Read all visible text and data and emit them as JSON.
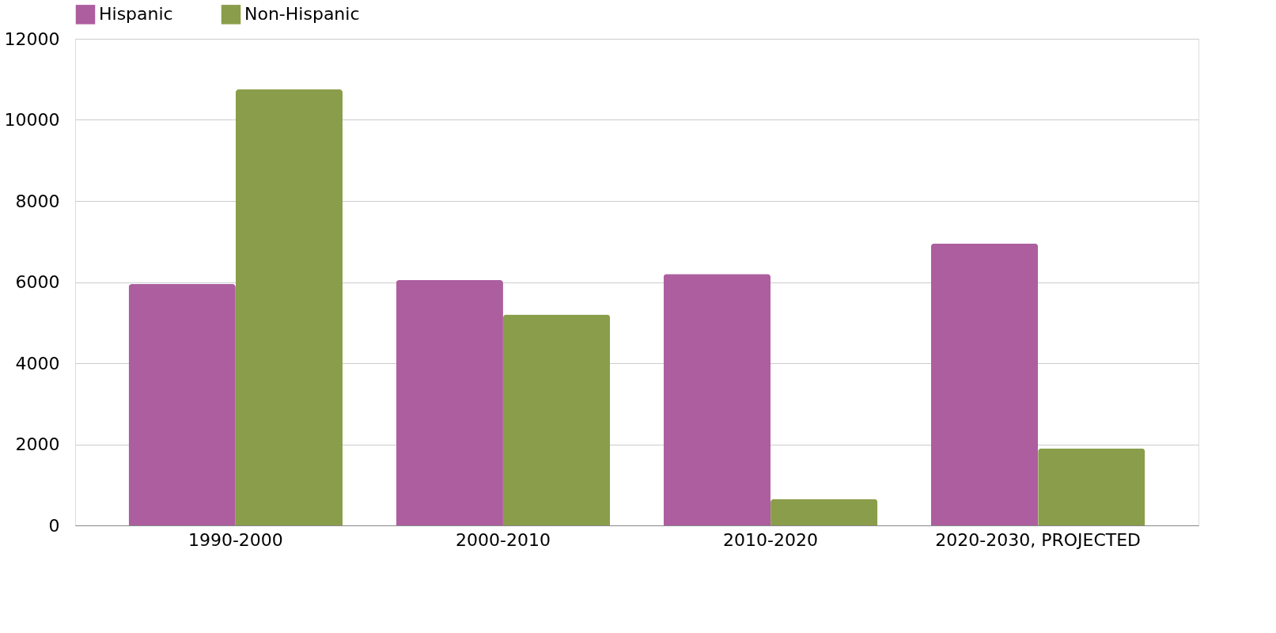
{
  "chart_data": {
    "type": "bar",
    "categories": [
      "1990-2000",
      "2000-2010",
      "2010-2020",
      "2020-2030, PROJECTED"
    ],
    "series": [
      {
        "name": "Hispanic",
        "color": "#ad5e9f",
        "values": [
          5950,
          6050,
          6200,
          6950
        ]
      },
      {
        "name": "Non-Hispanic",
        "color": "#8a9d4a",
        "values": [
          10750,
          5200,
          650,
          1900
        ]
      }
    ],
    "ylim": [
      0,
      12000
    ],
    "yticks": [
      0,
      2000,
      4000,
      6000,
      8000,
      10000,
      12000
    ],
    "grid": "y",
    "legend": "top"
  }
}
